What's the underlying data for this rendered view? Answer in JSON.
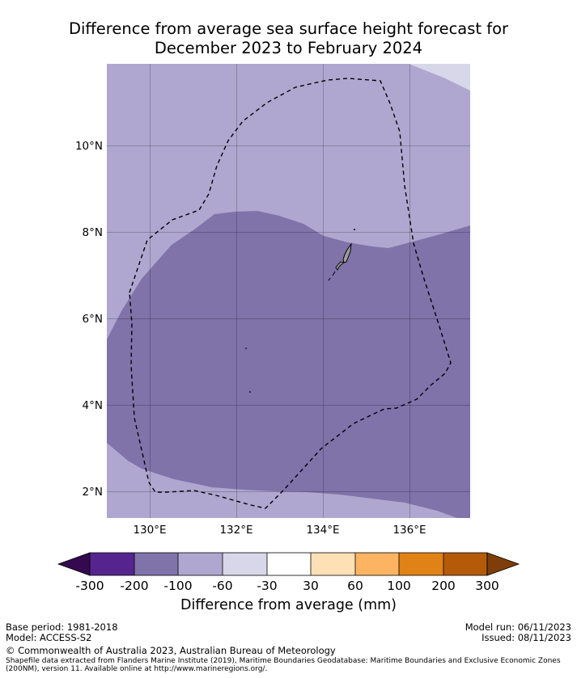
{
  "title": {
    "line1": "Difference from average sea surface height forecast for",
    "line2": "December 2023 to February 2024"
  },
  "map": {
    "y_ticks": [
      {
        "lat": 10,
        "label": "10°N"
      },
      {
        "lat": 8,
        "label": "8°N"
      },
      {
        "lat": 6,
        "label": "6°N"
      },
      {
        "lat": 4,
        "label": "4°N"
      },
      {
        "lat": 2,
        "label": "2°N"
      }
    ],
    "x_ticks": [
      {
        "lon": 130,
        "label": "130°E"
      },
      {
        "lon": 132,
        "label": "132°E"
      },
      {
        "lon": 134,
        "label": "134°E"
      },
      {
        "lon": 136,
        "label": "136°E"
      }
    ],
    "extent": {
      "lon_min": 129,
      "lon_max": 137.4,
      "lat_min": 1.4,
      "lat_max": 11.9
    },
    "legend_colors_used": {
      "minus_200_to_minus_100": "#7f73aa",
      "minus_100_to_minus_60": "#afa7cf",
      "minus_60_to_minus_30": "#d8d7ea"
    },
    "eez_boundary": "dashed"
  },
  "colorbar": {
    "levels": [
      "-300",
      "-200",
      "-100",
      "-60",
      "-30",
      "30",
      "60",
      "100",
      "200",
      "300"
    ],
    "colors": [
      "#56248f",
      "#7f73aa",
      "#afa7cf",
      "#d8d7ea",
      "#ffffff",
      "#fde0b5",
      "#fdb462",
      "#e08215",
      "#b45a09"
    ],
    "under_color": "#350950",
    "over_color": "#7f3e09",
    "label": "Difference from average (mm)"
  },
  "footer": {
    "base_period": "Base period: 1981-2018",
    "model": "Model: ACCESS-S2",
    "model_run": "Model run: 06/11/2023",
    "issued": "Issued: 08/11/2023",
    "copyright": "© Commonwealth of Australia 2023, Australian Bureau of Meteorology",
    "shapefile_line1": "Shapefile data extracted from Flanders Marine Institute (2019), Maritime Boundaries Geodatabase: Maritime Boundaries and Exclusive Economic Zones",
    "shapefile_line2": "(200NM), version 11. Available online at http://www.marineregions.org/."
  }
}
